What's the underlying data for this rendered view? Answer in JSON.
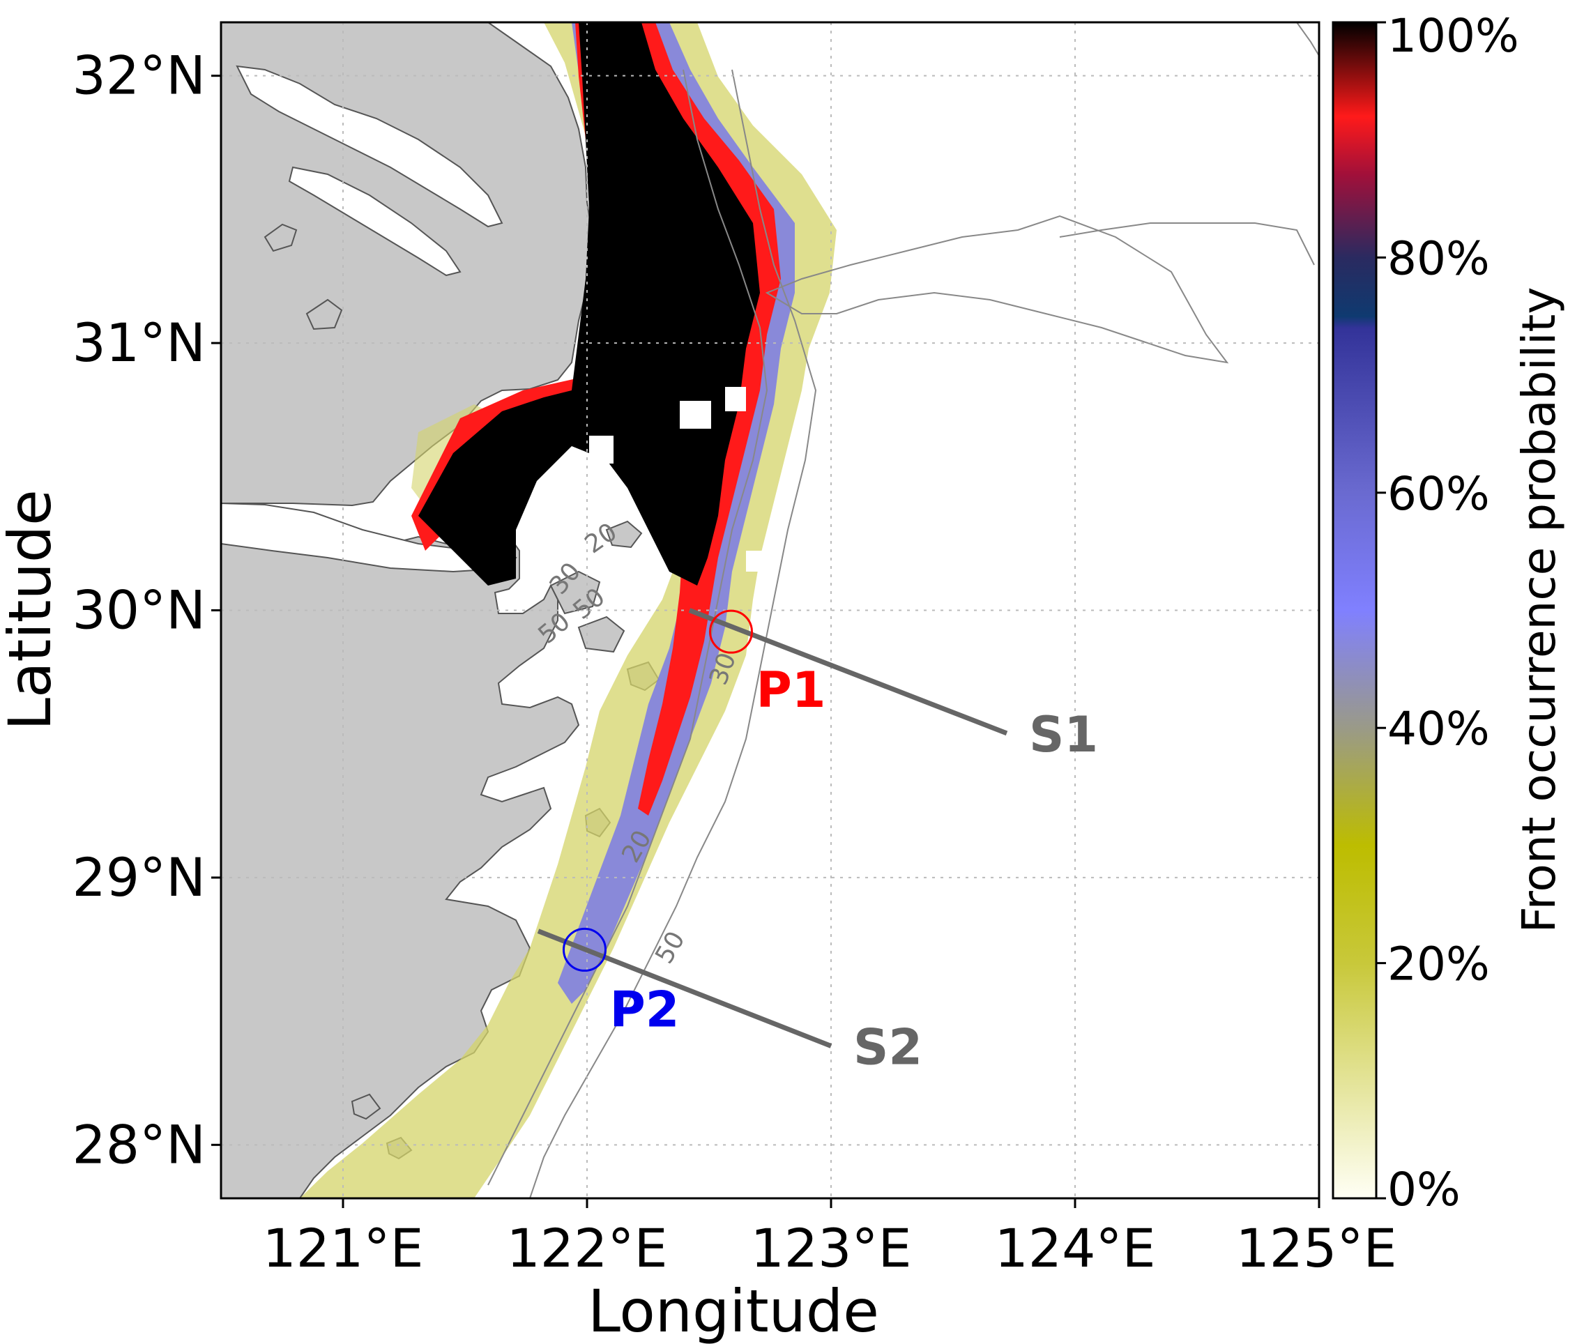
{
  "map": {
    "xlabel": "Longitude",
    "ylabel": "Latitude",
    "x_ticks": [
      "121°E",
      "122°E",
      "123°E",
      "124°E",
      "125°E"
    ],
    "y_ticks": [
      "32°N",
      "31°N",
      "30°N",
      "29°N",
      "28°N"
    ],
    "x_range": [
      120.5,
      125.0
    ],
    "y_range": [
      27.8,
      32.2
    ],
    "colors": {
      "land": "#c8c8c8",
      "frame": "#000000",
      "grid": "#bbbbbb",
      "section_line": "#666666",
      "p1": "#ff0000",
      "p2": "#0000ee"
    }
  },
  "colorbar": {
    "label": "Front occurrence probability",
    "ticks": [
      "0%",
      "20%",
      "40%",
      "60%",
      "80%",
      "100%"
    ],
    "stops": [
      {
        "value": 0,
        "color": "#fffff5"
      },
      {
        "value": 0.2,
        "color": "#c8c83a"
      },
      {
        "value": 0.3,
        "color": "#bdbd00"
      },
      {
        "value": 0.4,
        "color": "#9a9a88"
      },
      {
        "value": 0.5,
        "color": "#8080ff"
      },
      {
        "value": 0.6,
        "color": "#6a6ad0"
      },
      {
        "value": 0.74,
        "color": "#333399"
      },
      {
        "value": 0.75,
        "color": "#0f3a70"
      },
      {
        "value": 0.8,
        "color": "#2a2a60"
      },
      {
        "value": 0.87,
        "color": "#a0103a"
      },
      {
        "value": 0.92,
        "color": "#ff1a1a"
      },
      {
        "value": 1.0,
        "color": "#000000"
      }
    ]
  },
  "points": [
    {
      "label": "P1",
      "lon": 122.59,
      "lat": 29.92,
      "color": "#ff0000"
    },
    {
      "label": "P2",
      "lon": 121.99,
      "lat": 28.73,
      "color": "#0000ee"
    }
  ],
  "sections": [
    {
      "label": "S1",
      "start": [
        122.42,
        30.0
      ],
      "end": [
        123.72,
        29.54
      ]
    },
    {
      "label": "S2",
      "start": [
        121.8,
        28.8
      ],
      "end": [
        123.0,
        28.37
      ]
    }
  ],
  "isobaths": [
    "20",
    "30",
    "50",
    "50",
    "30",
    "20",
    "50"
  ]
}
